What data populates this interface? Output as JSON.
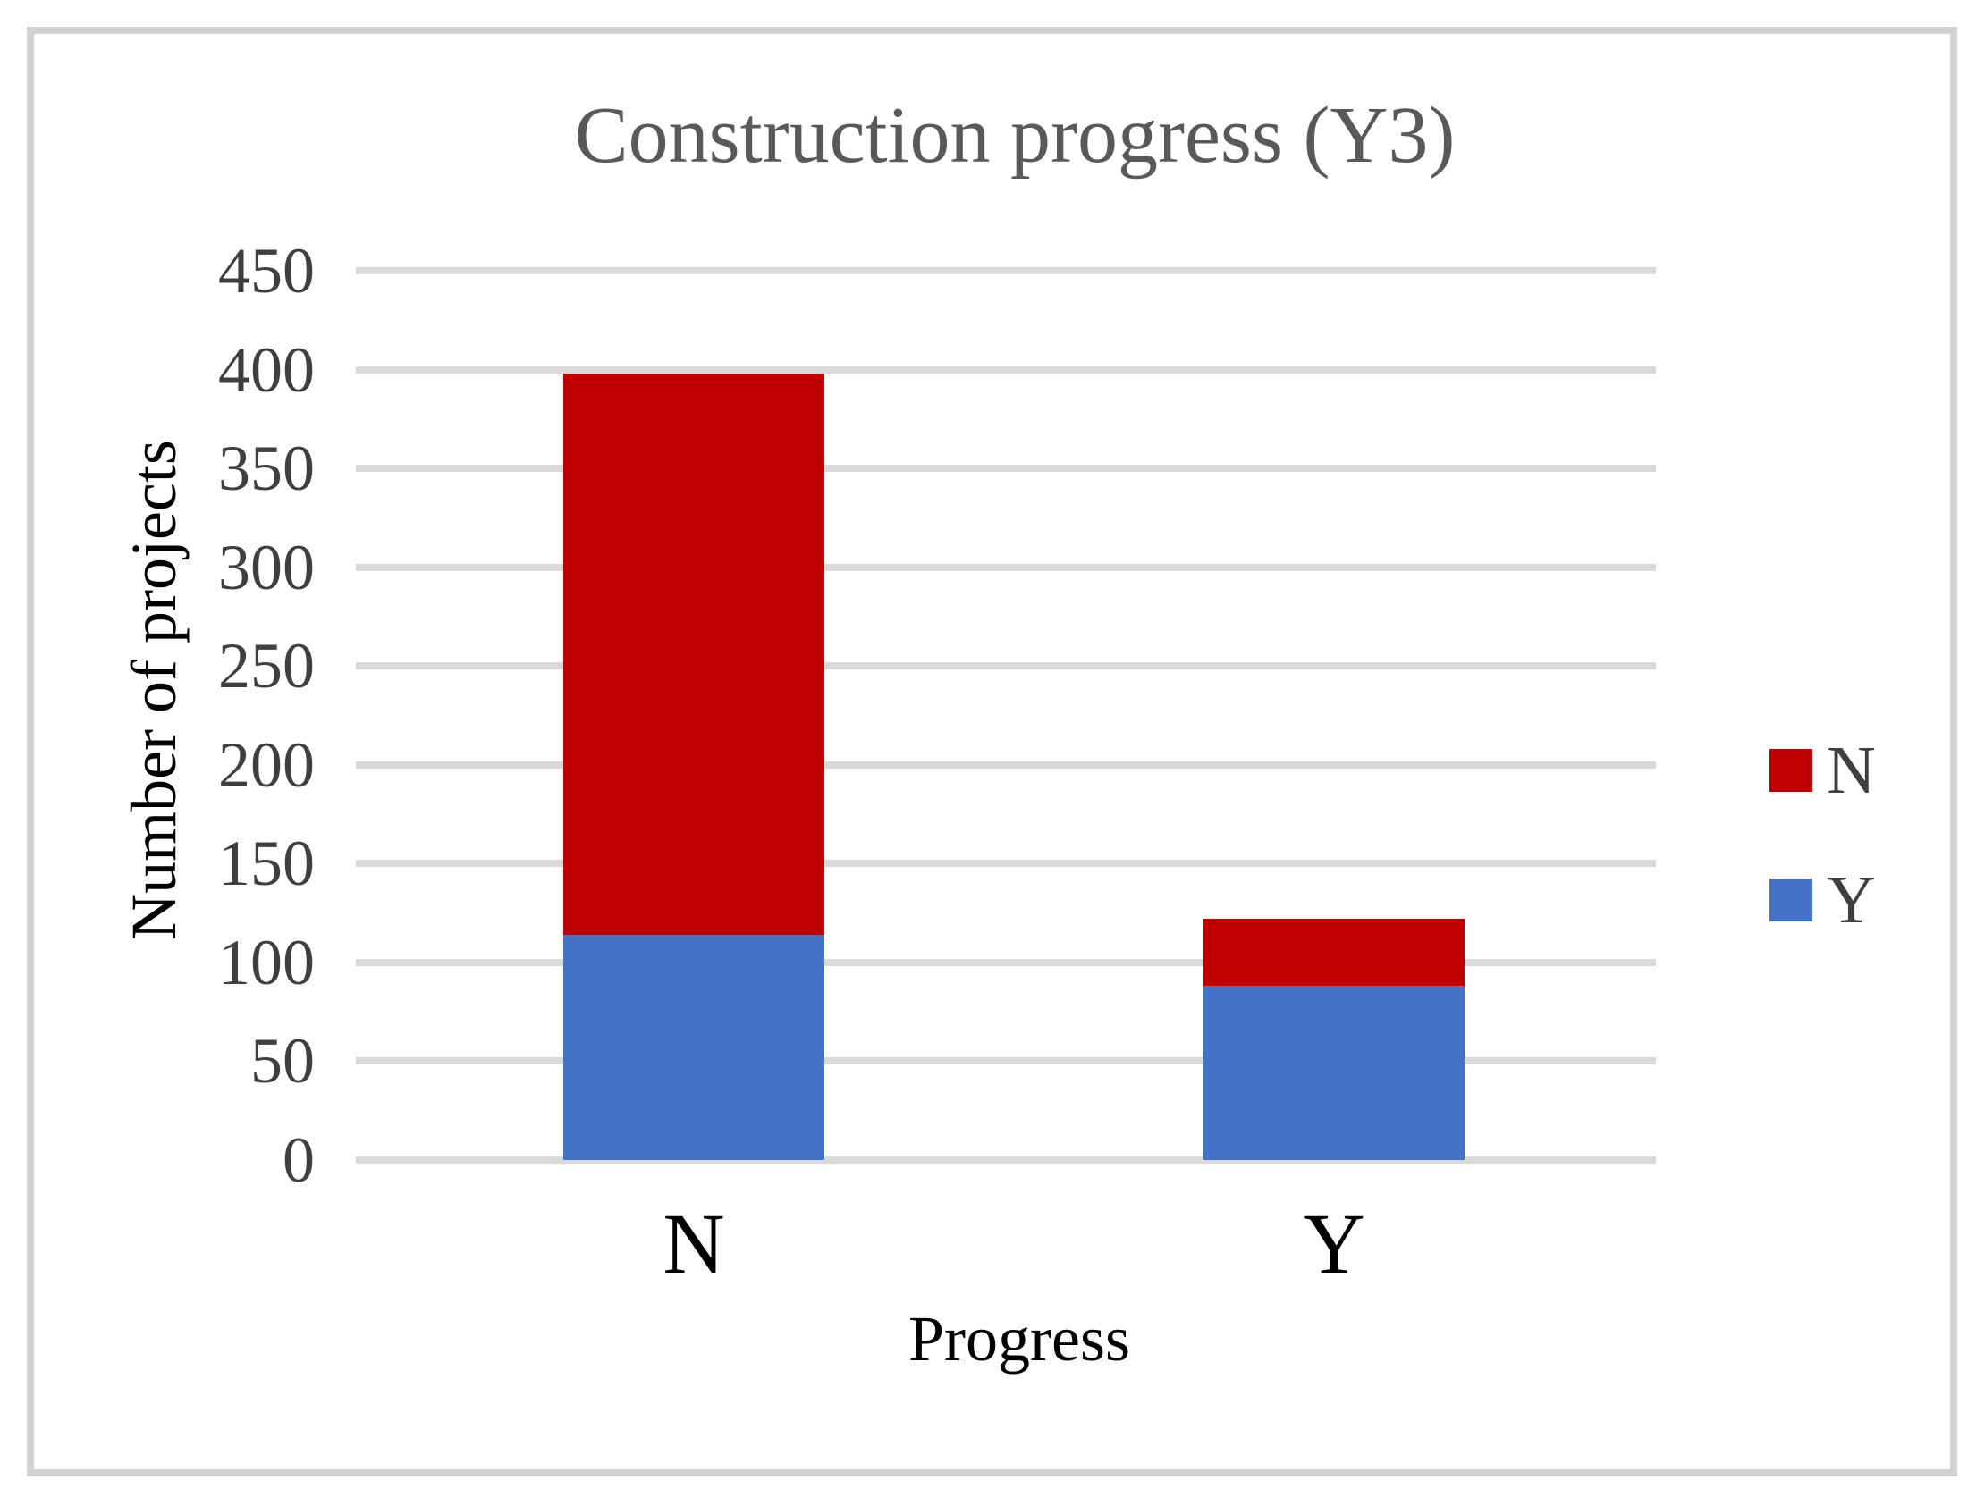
{
  "chart_data": {
    "type": "bar",
    "stacked": true,
    "title": "Construction progress (Y3)",
    "xlabel": "Progress",
    "ylabel": "Number of projects",
    "categories": [
      "N",
      "Y"
    ],
    "series": [
      {
        "name": "Y",
        "color": "#4472c4",
        "values": [
          114,
          88
        ]
      },
      {
        "name": "N",
        "color": "#c00000",
        "values": [
          284,
          34
        ]
      }
    ],
    "ylim": [
      0,
      450
    ],
    "yticks": [
      0,
      50,
      100,
      150,
      200,
      250,
      300,
      350,
      400,
      450
    ],
    "grid": true,
    "legend_position": "right",
    "legend": [
      {
        "label": "N",
        "color": "#c00000"
      },
      {
        "label": "Y",
        "color": "#4472c4"
      }
    ]
  },
  "colors": {
    "series_red": "#c00000",
    "series_blue": "#4472c4",
    "gridline": "#d9d9d9",
    "frame_border": "#d2d2d2",
    "title_text": "#595959",
    "tick_text": "#3f3f3f",
    "axis_title_text": "#000000",
    "background": "#ffffff"
  }
}
